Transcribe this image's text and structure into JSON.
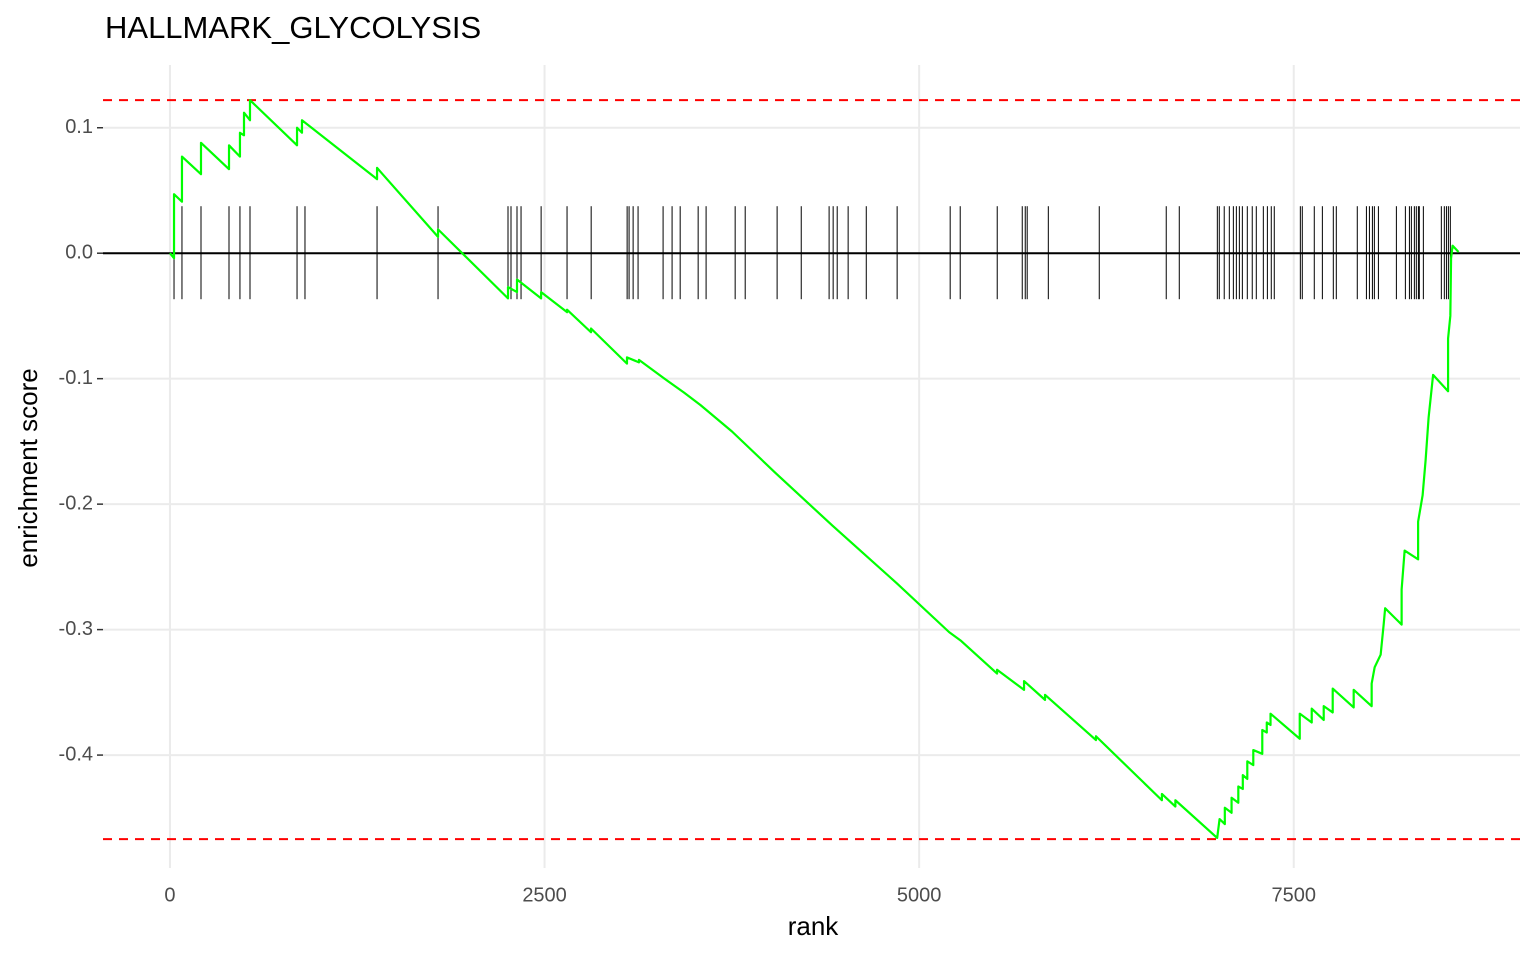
{
  "chart_data": {
    "type": "line",
    "title": "HALLMARK_GLYCOLYSIS",
    "xlabel": "rank",
    "ylabel": "enrichment score",
    "xlim": [
      -447,
      9010
    ],
    "ylim": [
      -0.49,
      0.15
    ],
    "xticks": [
      0,
      2500,
      5000,
      7500
    ],
    "yticks": [
      0.1,
      {
        "value": 0,
        "label": "0.0"
      },
      -0.1,
      -0.2,
      -0.3,
      -0.4
    ],
    "grid": true,
    "series": [
      {
        "color": "#00ff00",
        "x": [
          0,
          27,
          27,
          80,
          80,
          207,
          207,
          394,
          394,
          467,
          467,
          494,
          494,
          534,
          534,
          848,
          848,
          881,
          881,
          1382,
          1382,
          1789,
          1789,
          2256,
          2256,
          2316,
          2316,
          2477,
          2477,
          2650,
          2650,
          2810,
          2810,
          3050,
          3050,
          3130,
          3130,
          3300,
          3430,
          3540,
          3750,
          4040,
          4420,
          4850,
          5200,
          5280,
          5520,
          5520,
          5700,
          5700,
          5840,
          5840,
          6180,
          6180,
          6620,
          6620,
          6710,
          6710,
          6989,
          7005,
          7040,
          7040,
          7085,
          7085,
          7130,
          7130,
          7160,
          7160,
          7190,
          7190,
          7230,
          7230,
          7290,
          7290,
          7320,
          7320,
          7345,
          7345,
          7540,
          7540,
          7620,
          7620,
          7700,
          7700,
          7760,
          7760,
          7900,
          7900,
          8020,
          8020,
          8040,
          8080,
          8100,
          8110,
          8220,
          8220,
          8240,
          8330,
          8330,
          8360,
          8380,
          8400,
          8430,
          8530,
          8530,
          8545,
          8550,
          8560,
          8600
        ],
        "values": [
          0,
          -0.004,
          0.047,
          0.041,
          0.077,
          0.063,
          0.088,
          0.067,
          0.086,
          0.077,
          0.096,
          0.094,
          0.112,
          0.106,
          0.122,
          0.086,
          0.1,
          0.096,
          0.106,
          0.059,
          0.068,
          0.013,
          0.019,
          -0.036,
          -0.027,
          -0.031,
          -0.021,
          -0.036,
          -0.031,
          -0.047,
          -0.045,
          -0.063,
          -0.06,
          -0.088,
          -0.083,
          -0.087,
          -0.085,
          -0.1,
          -0.111,
          -0.121,
          -0.142,
          -0.175,
          -0.217,
          -0.263,
          -0.302,
          -0.309,
          -0.335,
          -0.332,
          -0.348,
          -0.341,
          -0.356,
          -0.352,
          -0.388,
          -0.385,
          -0.436,
          -0.431,
          -0.441,
          -0.436,
          -0.466,
          -0.451,
          -0.455,
          -0.442,
          -0.446,
          -0.434,
          -0.438,
          -0.425,
          -0.427,
          -0.416,
          -0.419,
          -0.405,
          -0.408,
          -0.396,
          -0.399,
          -0.38,
          -0.382,
          -0.374,
          -0.376,
          -0.367,
          -0.387,
          -0.367,
          -0.374,
          -0.363,
          -0.372,
          -0.361,
          -0.366,
          -0.347,
          -0.362,
          -0.348,
          -0.361,
          -0.343,
          -0.33,
          -0.32,
          -0.296,
          -0.283,
          -0.296,
          -0.268,
          -0.237,
          -0.244,
          -0.214,
          -0.193,
          -0.165,
          -0.131,
          -0.097,
          -0.11,
          -0.068,
          -0.05,
          -0.004,
          0.006,
          0.001
        ]
      }
    ],
    "hits": [
      27,
      80,
      207,
      394,
      467,
      534,
      848,
      901,
      1382,
      1789,
      2256,
      2276,
      2316,
      2343,
      2477,
      2650,
      2811,
      3051,
      3064,
      3091,
      3124,
      3291,
      3351,
      3405,
      3525,
      3578,
      3772,
      3839,
      4052,
      4213,
      4399,
      4426,
      4453,
      4526,
      4647,
      4853,
      5207,
      5274,
      5521,
      5688,
      5708,
      5721,
      5862,
      6202,
      6649,
      6736,
      6990,
      7003,
      7036,
      7070,
      7097,
      7117,
      7137,
      7157,
      7190,
      7223,
      7250,
      7297,
      7324,
      7350,
      7370,
      7544,
      7557,
      7637,
      7691,
      7764,
      7784,
      7924,
      7985,
      8005,
      8025,
      8038,
      8065,
      8185,
      8245,
      8272,
      8285,
      8305,
      8318,
      8332,
      8338,
      8365,
      8485,
      8505,
      8519,
      8532,
      8545
    ],
    "baseline": 0,
    "reference_lines": [
      0.122,
      -0.467
    ],
    "reference_color": "#ff0000"
  }
}
